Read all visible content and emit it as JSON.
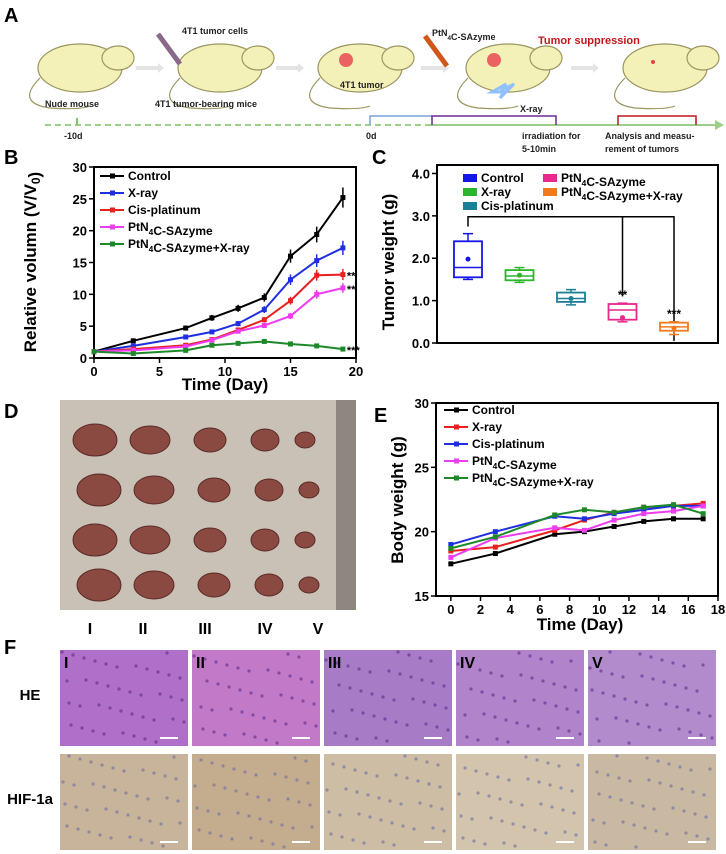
{
  "panel_a": {
    "letter": "A",
    "steps": {
      "nude_mouse": "Nude mouse",
      "tumor_cells": "4T1 tumor cells",
      "tumor_bearing": "4T1 tumor-bearing mice",
      "tumor_label": "4T1 tumor",
      "injection": "PtN4C-SAzyme",
      "suppression": "Tumor suppression",
      "xray": "X-ray",
      "day_minus10": "-10d",
      "day0": "0d",
      "irradiation_1": "irradiation for",
      "irradiation_2": "5-10min",
      "analysis_1": "Analysis and measu-",
      "analysis_2": "rement of tumors"
    },
    "colors": {
      "suppression": "#c0161c",
      "timeline": "#9ccf8a"
    }
  },
  "panel_d": {
    "letter": "D",
    "groups": [
      "I",
      "II",
      "III",
      "IV",
      "V"
    ]
  },
  "panel_f": {
    "letter": "F",
    "rows": [
      "HE",
      "HIF-1a"
    ],
    "columns": [
      "I",
      "II",
      "III",
      "IV",
      "V"
    ]
  },
  "chart_data": [
    {
      "id": "B",
      "letter": "B",
      "type": "line",
      "xlabel": "Time (Day)",
      "ylabel": "Relative volumn (V/V0)",
      "xlim": [
        0,
        20
      ],
      "ylim": [
        0,
        30
      ],
      "xticks": [
        0,
        5,
        10,
        15,
        20
      ],
      "yticks": [
        0,
        5,
        10,
        15,
        20,
        25,
        30
      ],
      "x": [
        0,
        3,
        7,
        9,
        11,
        13,
        15,
        17,
        19
      ],
      "legend": "top-left",
      "series": [
        {
          "name": "Control",
          "color": "#000000",
          "marker": "square",
          "values": [
            1,
            2.7,
            4.7,
            6.3,
            7.8,
            9.5,
            16,
            19.4,
            25.2
          ]
        },
        {
          "name": "X-ray",
          "color": "#1f2fe0",
          "marker": "triangle",
          "values": [
            1,
            1.9,
            3.3,
            4.1,
            5.4,
            7.6,
            12.3,
            15.3,
            17.3
          ]
        },
        {
          "name": "Cis-platinum",
          "color": "#e8201e",
          "marker": "circle",
          "values": [
            1,
            1.4,
            2.0,
            2.9,
            4.4,
            6.0,
            9.0,
            13.0,
            13.1
          ],
          "annotation": "**"
        },
        {
          "name": "PtN4C-SAzyme",
          "color": "#ee3cf0",
          "marker": "triangle-down",
          "values": [
            1,
            1.2,
            1.8,
            2.8,
            4.2,
            5.1,
            6.6,
            10.0,
            11.0
          ],
          "annotation": "**"
        },
        {
          "name": "PtN4C-SAzyme+X-ray",
          "color": "#1d8a2a",
          "marker": "diamond",
          "values": [
            1,
            0.7,
            1.2,
            2.0,
            2.3,
            2.6,
            2.2,
            1.9,
            1.4
          ],
          "annotation": "***"
        }
      ]
    },
    {
      "id": "C",
      "letter": "C",
      "type": "box",
      "ylabel": "Tumor weight (g)",
      "ylim": [
        0,
        4.2
      ],
      "yticks": [
        "0.0",
        "1.0",
        "2.0",
        "3.0",
        "4.0"
      ],
      "legend": "top",
      "series": [
        {
          "name": "Control",
          "color": "#1616e6",
          "min": 1.5,
          "q1": 1.55,
          "median": 1.78,
          "q3": 2.4,
          "max": 2.58,
          "mean": 1.98
        },
        {
          "name": "X-ray",
          "color": "#2db52d",
          "min": 1.43,
          "q1": 1.48,
          "median": 1.58,
          "q3": 1.72,
          "max": 1.78,
          "mean": 1.6
        },
        {
          "name": "Cis-platinum",
          "color": "#1a8095",
          "min": 0.9,
          "q1": 0.97,
          "median": 1.05,
          "q3": 1.19,
          "max": 1.26,
          "mean": 1.05
        },
        {
          "name": "PtN4C-SAzyme",
          "color": "#e8288a",
          "min": 0.5,
          "q1": 0.55,
          "median": 0.78,
          "q3": 0.92,
          "max": 0.94,
          "mean": 0.6,
          "annotation": "**"
        },
        {
          "name": "PtN4C-SAzyme+X-ray",
          "color": "#f07a1e",
          "min": 0.2,
          "q1": 0.29,
          "median": 0.38,
          "q3": 0.48,
          "max": 0.5,
          "mean": 0.35,
          "annotation": "***"
        }
      ]
    },
    {
      "id": "E",
      "letter": "E",
      "type": "line",
      "xlabel": "Time (Day)",
      "ylabel": "Body weight (g)",
      "xlim": [
        -1,
        18
      ],
      "ylim": [
        15,
        30
      ],
      "xticks": [
        0,
        2,
        4,
        6,
        8,
        10,
        12,
        14,
        16,
        18
      ],
      "yticks": [
        15,
        20,
        25,
        30
      ],
      "x": [
        0,
        3,
        7,
        9,
        11,
        13,
        15,
        17
      ],
      "legend": "top-left",
      "series": [
        {
          "name": "Control",
          "color": "#000000",
          "values": [
            17.5,
            18.3,
            19.8,
            20.0,
            20.4,
            20.8,
            21.0,
            21.0
          ]
        },
        {
          "name": "X-ray",
          "color": "#e8201e",
          "values": [
            18.5,
            18.8,
            20.1,
            20.9,
            21.5,
            21.9,
            22.0,
            22.2
          ]
        },
        {
          "name": "Cis-platinum",
          "color": "#1f2fe0",
          "values": [
            19.0,
            20.0,
            21.2,
            21.0,
            21.4,
            21.7,
            22.0,
            22.0
          ]
        },
        {
          "name": "PtN4C-SAzyme",
          "color": "#ee3cf0",
          "values": [
            18.0,
            19.5,
            20.3,
            20.1,
            20.9,
            21.4,
            21.6,
            22.0
          ]
        },
        {
          "name": "PtN4C-SAzyme+X-ray",
          "color": "#1d8a2a",
          "values": [
            18.7,
            19.6,
            21.3,
            21.7,
            21.5,
            21.9,
            22.1,
            21.4
          ]
        }
      ]
    }
  ]
}
